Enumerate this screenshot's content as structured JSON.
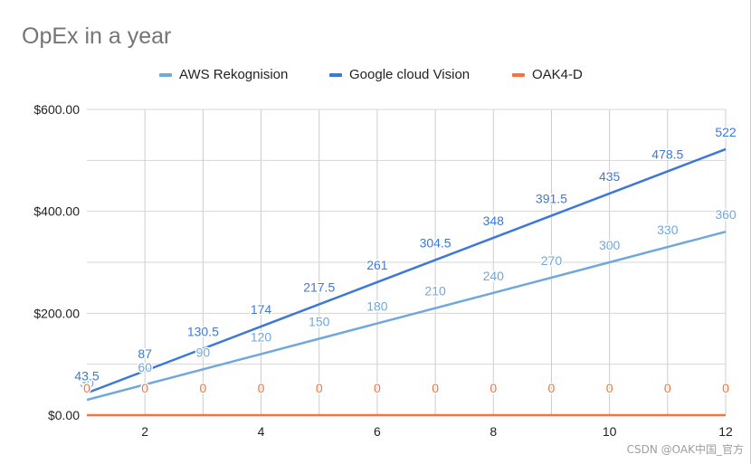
{
  "chart_data": {
    "type": "line",
    "title": "OpEx in a year",
    "xlabel": "",
    "ylabel": "",
    "x": [
      1,
      2,
      3,
      4,
      5,
      6,
      7,
      8,
      9,
      10,
      11,
      12
    ],
    "xticks": [
      2,
      4,
      6,
      8,
      10,
      12
    ],
    "xtick_labels": [
      "2",
      "4",
      "6",
      "8",
      "10",
      "12"
    ],
    "xlim": [
      1,
      12
    ],
    "ylim": [
      0,
      600
    ],
    "yticks": [
      0,
      200,
      400,
      600
    ],
    "ytick_labels": [
      "$0.00",
      "$200.00",
      "$400.00",
      "$600.00"
    ],
    "grid": true,
    "legend_position": "top",
    "series": [
      {
        "name": "AWS Rekognision",
        "color": "#6fa8dc",
        "values": [
          30,
          60,
          90,
          120,
          150,
          180,
          210,
          240,
          270,
          300,
          330,
          360
        ],
        "labels": [
          "30",
          "60",
          "90",
          "120",
          "150",
          "180",
          "210",
          "240",
          "270",
          "300",
          "330",
          "360"
        ]
      },
      {
        "name": "Google cloud Vision",
        "color": "#3c78d8",
        "values": [
          43.5,
          87,
          130.5,
          174,
          217.5,
          261,
          304.5,
          348,
          391.5,
          435,
          478.5,
          522
        ],
        "labels": [
          "43.5",
          "87",
          "130.5",
          "174",
          "217.5",
          "261",
          "304.5",
          "348",
          "391.5",
          "435",
          "478.5",
          "522"
        ]
      },
      {
        "name": "OAK4-D",
        "color": "#f4743b",
        "values": [
          0,
          0,
          0,
          0,
          0,
          0,
          0,
          0,
          0,
          0,
          0,
          0
        ],
        "labels": [
          "0",
          "0",
          "0",
          "0",
          "0",
          "0",
          "0",
          "0",
          "0",
          "0",
          "0",
          "0"
        ]
      }
    ]
  },
  "watermark": "CSDN @OAK中国_官方"
}
